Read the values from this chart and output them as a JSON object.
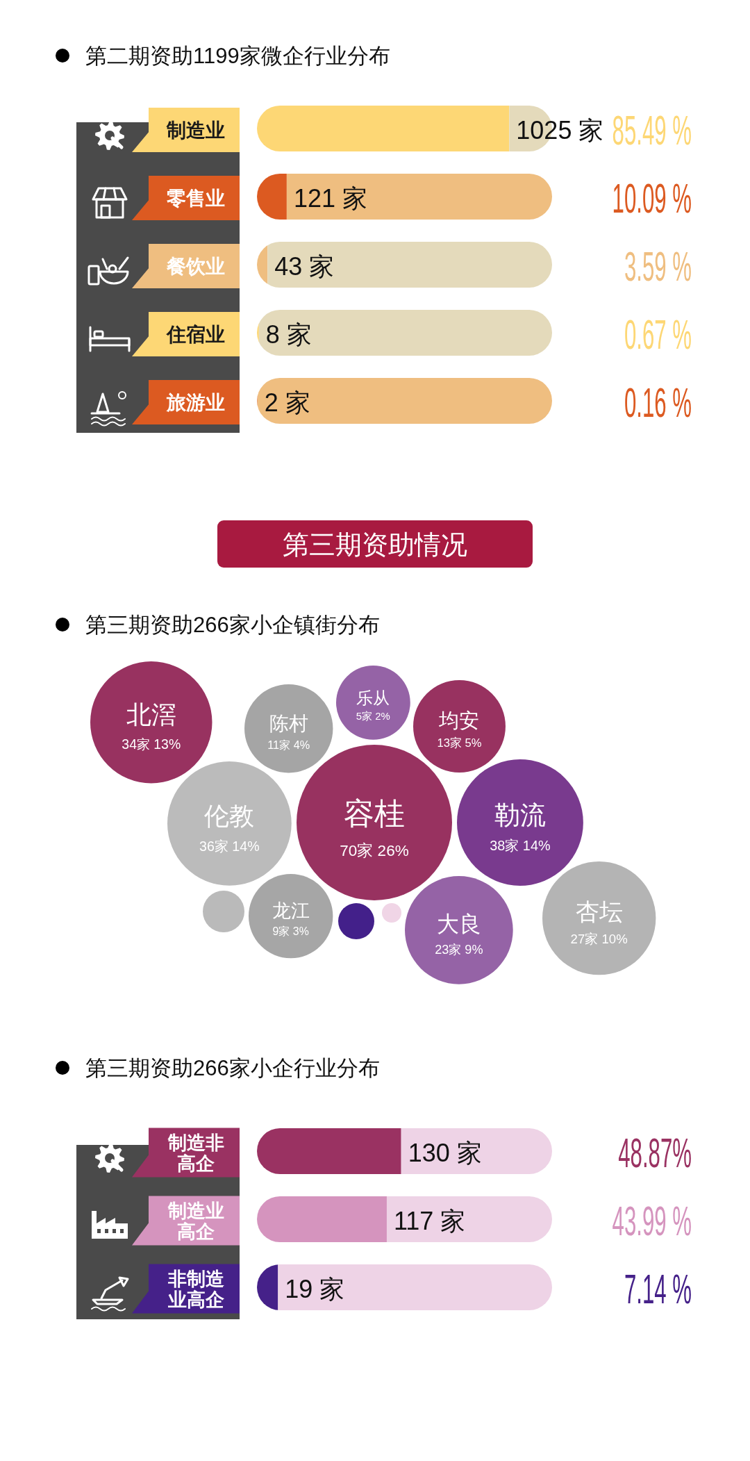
{
  "chart_data": [
    {
      "type": "bar",
      "orientation": "horizontal",
      "stacked": true,
      "title": "第二期资助1199家微企行业分布",
      "categories": [
        "制造业",
        "零售业",
        "餐饮业",
        "住宿业",
        "旅游业"
      ],
      "xlim": [
        0,
        100
      ],
      "tick_labels": "y",
      "series": [
        {
          "values": [
            85.49,
            10.09,
            3.59,
            0.67,
            0.16
          ],
          "colors": [
            "#fdd775",
            "#dc5a21",
            "#efbe80",
            "#fdd775",
            "#dc5a21"
          ],
          "value_labels": [
            "85.49 %",
            "10.09 %",
            "3.59 %",
            "0.67 %",
            "0.16 %"
          ]
        },
        {
          "values": [
            14.51,
            89.91,
            96.41,
            99.33,
            99.84
          ],
          "colors": [
            "#e4dabb",
            "#efbe80",
            "#e4dabb",
            "#e4dabb",
            "#efbe80"
          ]
        }
      ],
      "annotations": [
        {
          "text": "1025 家",
          "x": 85.49,
          "y": "制造业"
        },
        {
          "text": "121 家",
          "x": 10.09,
          "y": "零售业"
        },
        {
          "text": "43 家",
          "x": 3.59,
          "y": "餐饮业"
        },
        {
          "text": "8 家",
          "x": 0.67,
          "y": "住宿业"
        },
        {
          "text": "2 家",
          "x": 0.16,
          "y": "旅游业"
        }
      ]
    },
    {
      "type": "other",
      "title": "第三期资助情况"
    },
    {
      "type": "other",
      "title": "第三期资助266家小企镇街分布",
      "categories": [
        "乐从",
        "北滘",
        "陈村",
        "伦教",
        "勒流",
        "龙江",
        "大良",
        "杏坛",
        "容桂",
        "均安"
      ],
      "values": [
        5,
        34,
        11,
        36,
        38,
        9,
        23,
        27,
        70,
        13
      ],
      "value_labels": [
        "5家 2%",
        "34家 13%",
        "11家 4%",
        "36家 14%",
        "38家 14%",
        "9家 3%",
        "23家 9%",
        "27家 10%",
        "70家 26%",
        "13家 5%"
      ],
      "colors": [
        "#9563a6",
        "#983260",
        "#a5a5a5",
        "#bbbbbb",
        "#793a8e",
        "#a6a6a6",
        "#9563a6",
        "#b4b4b4",
        "#983260",
        "#983260"
      ]
    },
    {
      "type": "bar",
      "orientation": "horizontal",
      "stacked": true,
      "title": "第三期资助266家小企行业分布",
      "categories": [
        "制造非高企",
        "制造业高企",
        "非制造业高企"
      ],
      "xlim": [
        0,
        100
      ],
      "tick_labels": "y",
      "series": [
        {
          "values": [
            48.87,
            43.99,
            7.14
          ],
          "colors": [
            "#9a3262",
            "#d594be",
            "#452189"
          ],
          "value_labels": [
            "48.87%",
            "43.99 %",
            "7.14 %"
          ]
        },
        {
          "values": [
            51.13,
            56.01,
            92.86
          ],
          "colors": [
            "#eed3e6",
            "#eed3e6",
            "#eed3e6"
          ]
        }
      ],
      "annotations": [
        {
          "text": "130 家",
          "x": 48.87,
          "y": "制造非高企"
        },
        {
          "text": "117 家",
          "x": 43.99,
          "y": "制造业高企"
        },
        {
          "text": "19 家",
          "x": 7.14,
          "y": "非制造业高企"
        }
      ]
    }
  ]
}
